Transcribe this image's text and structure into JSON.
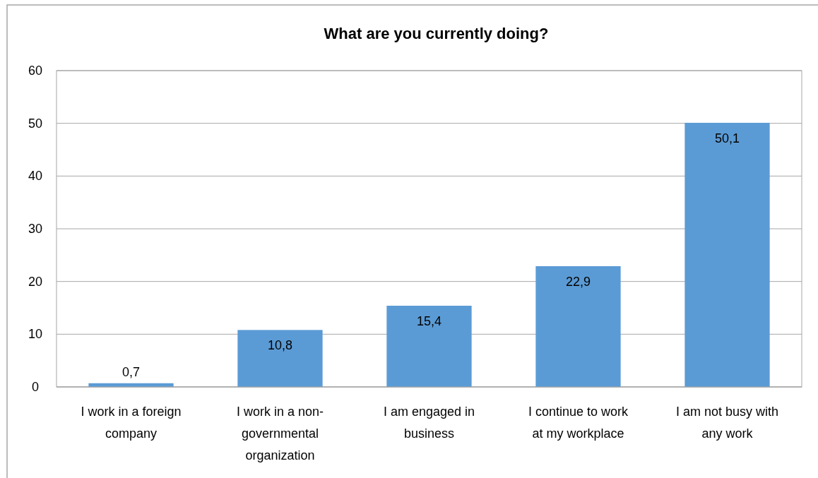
{
  "chart_data": {
    "type": "bar",
    "title": "What are you currently doing?",
    "categories": [
      "I work in a foreign company",
      "I work in a non-governmental organization",
      "I am engaged in business",
      "I continue to work at my workplace",
      "I am not busy with any work"
    ],
    "values": [
      0.7,
      10.8,
      15.4,
      22.9,
      50.1
    ],
    "value_labels": [
      "0,7",
      "10,8",
      "15,4",
      "22,9",
      "50,1"
    ],
    "color": "#5b9bd5",
    "ylim": [
      0,
      60
    ],
    "yticks": [
      0,
      10,
      20,
      30,
      40,
      50,
      60
    ],
    "grid": "y"
  }
}
